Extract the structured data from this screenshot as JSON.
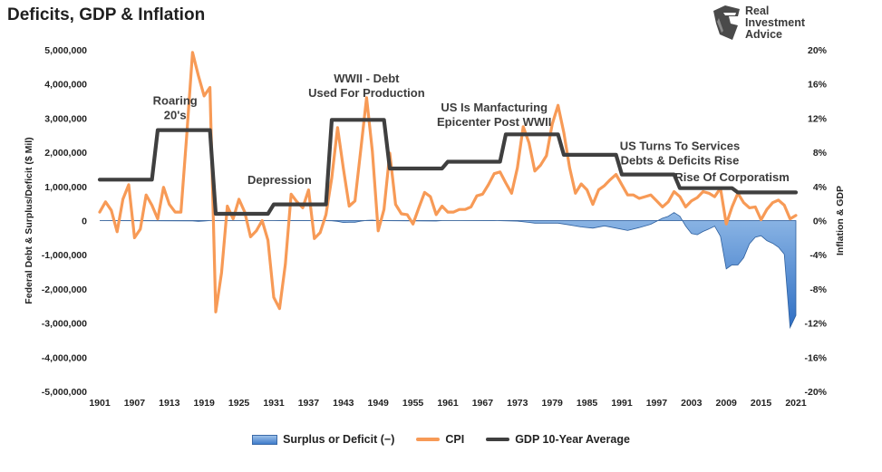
{
  "title": "Deficits, GDP & Inflation",
  "logo": {
    "icon": "helmet-logo-icon",
    "lines": [
      "Real",
      "Investment",
      "Advice"
    ]
  },
  "chart_data": {
    "type": "line",
    "x_ticks": [
      "1901",
      "1907",
      "1913",
      "1919",
      "1925",
      "1931",
      "1937",
      "1943",
      "1949",
      "1955",
      "1961",
      "1967",
      "1973",
      "1979",
      "1985",
      "1991",
      "1997",
      "2003",
      "2009",
      "2015",
      "2021"
    ],
    "xlim": [
      1901,
      2021
    ],
    "y_left": {
      "label": "Federal Debt & Surplus/Deficit ($ Mil)",
      "ticks": [
        "5,000,000",
        "4,000,000",
        "3,000,000",
        "2,000,000",
        "1,000,000",
        "0",
        "-1,000,000",
        "-2,000,000",
        "-3,000,000",
        "-4,000,000",
        "-5,000,000"
      ],
      "range": [
        -5000000,
        5000000
      ]
    },
    "y_right": {
      "label": "Inflation & GDP",
      "ticks": [
        "20%",
        "16%",
        "12%",
        "8%",
        "4%",
        "0%",
        "-4%",
        "-8%",
        "-12%",
        "-16%",
        "-20%"
      ],
      "range": [
        -20,
        20
      ]
    },
    "colors": {
      "cpi": "#f79a56",
      "gdp": "#3f3f3f",
      "deficit_fill": "#4a86d0",
      "deficit_stroke": "#2d5f9e"
    },
    "series": [
      {
        "name": "Surplus or Deficit (−)",
        "axis": "left",
        "x": [
          1901,
          1917,
          1918,
          1919,
          1920,
          1921,
          1930,
          1931,
          1932,
          1933,
          1940,
          1941,
          1942,
          1943,
          1944,
          1945,
          1946,
          1947,
          1948,
          1949,
          1950,
          1959,
          1960,
          1969,
          1970,
          1973,
          1975,
          1976,
          1980,
          1982,
          1984,
          1986,
          1988,
          1990,
          1992,
          1994,
          1996,
          1998,
          1999,
          2000,
          2001,
          2002,
          2003,
          2004,
          2005,
          2006,
          2007,
          2008,
          2009,
          2010,
          2011,
          2012,
          2013,
          2014,
          2015,
          2016,
          2017,
          2018,
          2019,
          2020,
          2021
        ],
        "values": [
          0,
          -10000,
          -20000,
          -13000,
          0,
          0,
          0,
          0,
          -3000,
          -3000,
          -3000,
          -5000,
          -20000,
          -55000,
          -47000,
          -48000,
          -16000,
          4000,
          12000,
          0,
          -3000,
          -13000,
          0,
          3000,
          -3000,
          -15000,
          -53000,
          -74000,
          -74000,
          -128000,
          -185000,
          -221000,
          -155000,
          -221000,
          -290000,
          -203000,
          -107000,
          69000,
          126000,
          236000,
          128000,
          -158000,
          -378000,
          -413000,
          -318000,
          -248000,
          -161000,
          -459000,
          -1413000,
          -1294000,
          -1300000,
          -1087000,
          -680000,
          -485000,
          -442000,
          -585000,
          -665000,
          -779000,
          -984000,
          -3132000,
          -2775000
        ]
      },
      {
        "name": "CPI",
        "axis": "right",
        "x": [
          1901,
          1902,
          1903,
          1904,
          1905,
          1906,
          1907,
          1908,
          1909,
          1910,
          1911,
          1912,
          1913,
          1914,
          1915,
          1916,
          1917,
          1918,
          1919,
          1920,
          1921,
          1922,
          1923,
          1924,
          1925,
          1926,
          1927,
          1928,
          1929,
          1930,
          1931,
          1932,
          1933,
          1934,
          1935,
          1936,
          1937,
          1938,
          1939,
          1940,
          1941,
          1942,
          1943,
          1944,
          1945,
          1946,
          1947,
          1948,
          1949,
          1950,
          1951,
          1952,
          1953,
          1954,
          1955,
          1956,
          1957,
          1958,
          1959,
          1960,
          1961,
          1962,
          1963,
          1964,
          1965,
          1966,
          1967,
          1968,
          1969,
          1970,
          1971,
          1972,
          1973,
          1974,
          1975,
          1976,
          1977,
          1978,
          1979,
          1980,
          1981,
          1982,
          1983,
          1984,
          1985,
          1986,
          1987,
          1988,
          1989,
          1990,
          1991,
          1992,
          1993,
          1994,
          1995,
          1996,
          1997,
          1998,
          1999,
          2000,
          2001,
          2002,
          2003,
          2004,
          2005,
          2006,
          2007,
          2008,
          2009,
          2010,
          2011,
          2012,
          2013,
          2014,
          2015,
          2016,
          2017,
          2018,
          2019,
          2020,
          2021
        ],
        "values": [
          1.0,
          2.2,
          1.2,
          -1.3,
          2.5,
          4.2,
          -2.0,
          -1.0,
          3.0,
          1.8,
          0.2,
          3.9,
          1.9,
          1.0,
          1.0,
          10.0,
          19.7,
          17.0,
          14.6,
          15.6,
          -10.7,
          -6.1,
          1.7,
          0.2,
          2.5,
          1.0,
          -1.9,
          -1.2,
          0.0,
          -2.3,
          -9.0,
          -10.3,
          -5.1,
          3.1,
          2.2,
          1.5,
          3.6,
          -2.1,
          -1.4,
          0.7,
          5.0,
          10.9,
          6.1,
          1.7,
          2.3,
          8.3,
          14.4,
          8.1,
          -1.2,
          1.3,
          7.9,
          1.9,
          0.8,
          0.7,
          -0.4,
          1.5,
          3.3,
          2.8,
          0.7,
          1.7,
          1.0,
          1.0,
          1.3,
          1.3,
          1.6,
          2.9,
          3.1,
          4.2,
          5.5,
          5.7,
          4.4,
          3.2,
          6.2,
          11.0,
          9.1,
          5.8,
          6.5,
          7.6,
          11.3,
          13.5,
          10.3,
          6.2,
          3.2,
          4.3,
          3.6,
          1.9,
          3.6,
          4.1,
          4.8,
          5.4,
          4.2,
          3.0,
          3.0,
          2.6,
          2.8,
          3.0,
          2.3,
          1.6,
          2.2,
          3.4,
          2.8,
          1.6,
          2.3,
          2.7,
          3.4,
          3.2,
          2.8,
          3.8,
          -0.4,
          1.6,
          3.2,
          2.1,
          1.5,
          1.6,
          0.1,
          1.3,
          2.1,
          2.4,
          1.8,
          0.2,
          0.6
        ]
      },
      {
        "name": "GDP 10-Year Average",
        "axis": "right",
        "x": [
          1901,
          1910,
          1911,
          1920,
          1921,
          1930,
          1931,
          1940,
          1941,
          1950,
          1951,
          1960,
          1961,
          1970,
          1971,
          1980,
          1981,
          1990,
          1991,
          2000,
          2001,
          2010,
          2011,
          2021
        ],
        "values": [
          4.8,
          4.8,
          10.6,
          10.6,
          0.8,
          0.8,
          1.9,
          1.9,
          11.8,
          11.8,
          6.1,
          6.1,
          6.9,
          6.9,
          10.1,
          10.1,
          7.7,
          7.7,
          5.4,
          5.4,
          3.8,
          3.8,
          3.3,
          3.3
        ]
      }
    ],
    "annotations": [
      {
        "lines": [
          "Roaring",
          "20's"
        ],
        "x": 1914,
        "y": 13.6
      },
      {
        "lines": [
          "Depression"
        ],
        "x": 1932,
        "y": 4.3
      },
      {
        "lines": [
          "WWII - Debt",
          "Used For Production"
        ],
        "x": 1947,
        "y": 16.2
      },
      {
        "lines": [
          "US Is Manfacturing",
          "Epicenter Post WWII"
        ],
        "x": 1969,
        "y": 12.8
      },
      {
        "lines": [
          "US Turns To Services",
          "Debts & Deficits Rise"
        ],
        "x": 2001,
        "y": 8.3
      },
      {
        "lines": [
          "Rise Of Corporatism"
        ],
        "x": 2010,
        "y": 4.6
      }
    ],
    "grid": false,
    "legend_position": "bottom"
  }
}
